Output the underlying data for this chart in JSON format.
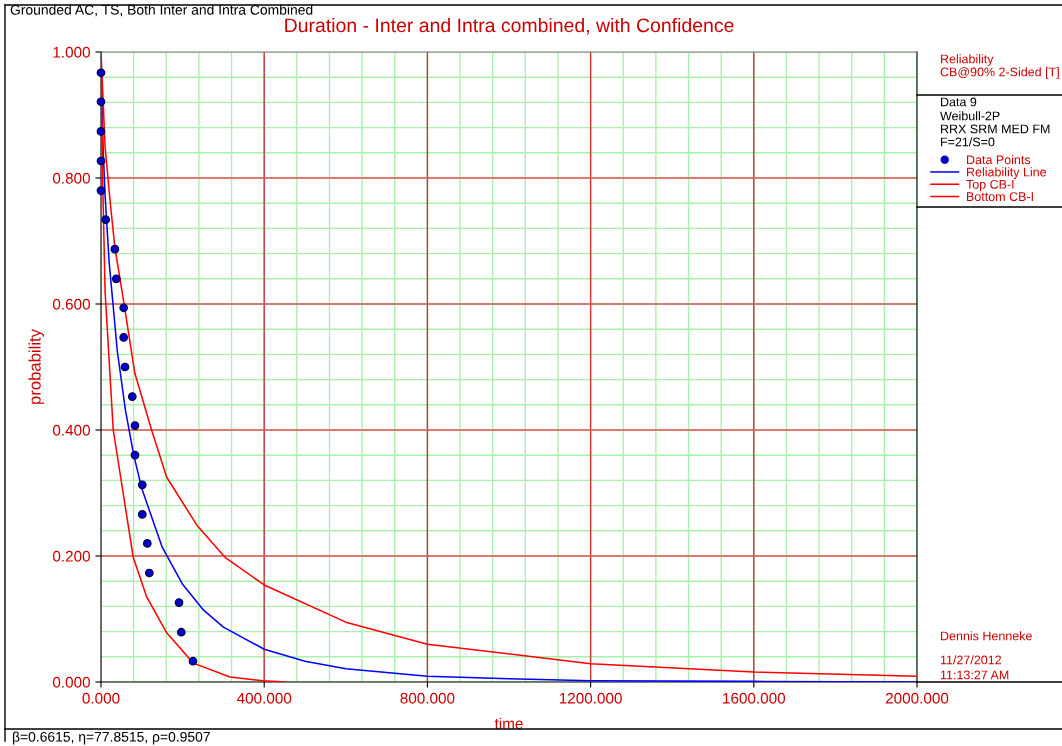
{
  "chart_data": {
    "type": "line",
    "title": "Duration - Inter and Intra combined, with Confidence",
    "xlabel": "time",
    "ylabel": "probability",
    "xlim": [
      0,
      2000
    ],
    "ylim": [
      0,
      1
    ],
    "xticks": [
      {
        "value": 0,
        "label": "0.000"
      },
      {
        "value": 400,
        "label": "400.000"
      },
      {
        "value": 800,
        "label": "800.000"
      },
      {
        "value": 1200,
        "label": "1200.000"
      },
      {
        "value": 1600,
        "label": "1600.000"
      },
      {
        "value": 2000,
        "label": "2000.000"
      }
    ],
    "yticks": [
      {
        "value": 0,
        "label": "0.000"
      },
      {
        "value": 0.2,
        "label": "0.200"
      },
      {
        "value": 0.4,
        "label": "0.400"
      },
      {
        "value": 0.6,
        "label": "0.600"
      },
      {
        "value": 0.8,
        "label": "0.800"
      },
      {
        "value": 1,
        "label": "1.000"
      }
    ],
    "grid": true,
    "legend": "right",
    "series": [
      {
        "name": "Data Points",
        "type": "scatter",
        "marker": "circle",
        "color": "#0000cc",
        "x": [
          0,
          0,
          0,
          0,
          0,
          11.5,
          34,
          37.5,
          55.6,
          55.6,
          58.8,
          76.7,
          83.3,
          83.3,
          101.2,
          101.2,
          113.5,
          118.4,
          191.2,
          196.8,
          225.5
        ],
        "values": [
          0.967,
          0.921,
          0.874,
          0.827,
          0.78,
          0.734,
          0.687,
          0.64,
          0.594,
          0.547,
          0.5,
          0.453,
          0.407,
          0.36,
          0.313,
          0.266,
          0.22,
          0.173,
          0.126,
          0.079,
          0.033
        ]
      },
      {
        "name": "Reliability Line",
        "color": "#0000ff",
        "x": [
          0,
          5,
          10,
          20,
          40,
          60,
          80,
          100,
          150,
          200,
          250,
          300,
          400,
          500,
          600,
          800,
          1000,
          1200,
          1600,
          2000
        ],
        "values": [
          1.0,
          0.85,
          0.773,
          0.666,
          0.525,
          0.431,
          0.361,
          0.307,
          0.214,
          0.155,
          0.115,
          0.087,
          0.052,
          0.033,
          0.021,
          0.009,
          0.005,
          0.002,
          0.001,
          0.0
        ]
      },
      {
        "name": "Top CB-I",
        "color": "#ff0000",
        "x": [
          0,
          10,
          22,
          34,
          55,
          83,
          124,
          161,
          235,
          304,
          400,
          600,
          800,
          1200,
          1600,
          2000
        ],
        "values": [
          1.0,
          0.85,
          0.765,
          0.69,
          0.606,
          0.49,
          0.4,
          0.325,
          0.249,
          0.198,
          0.154,
          0.095,
          0.06,
          0.029,
          0.016,
          0.009
        ]
      },
      {
        "name": "Bottom CB-I",
        "color": "#ff0000",
        "x": [
          0,
          4,
          10,
          30,
          79,
          112,
          161,
          226,
          316,
          397,
          450
        ],
        "values": [
          1.0,
          0.8,
          0.62,
          0.4,
          0.198,
          0.135,
          0.078,
          0.03,
          0.008,
          0.002,
          0.0
        ]
      }
    ],
    "annotations": [
      "Grounded AC, TS, Both Inter and Intra Combined",
      "Reliability",
      "CB@90% 2-Sided [T]",
      "Data 9",
      "Weibull-2P",
      "RRX SRM MED FM",
      "F=21/S=0",
      "Dennis Henneke",
      "11/27/2012",
      "11:13:27 AM",
      "β=0.6615, η=77.8515, ρ=0.9507"
    ]
  }
}
